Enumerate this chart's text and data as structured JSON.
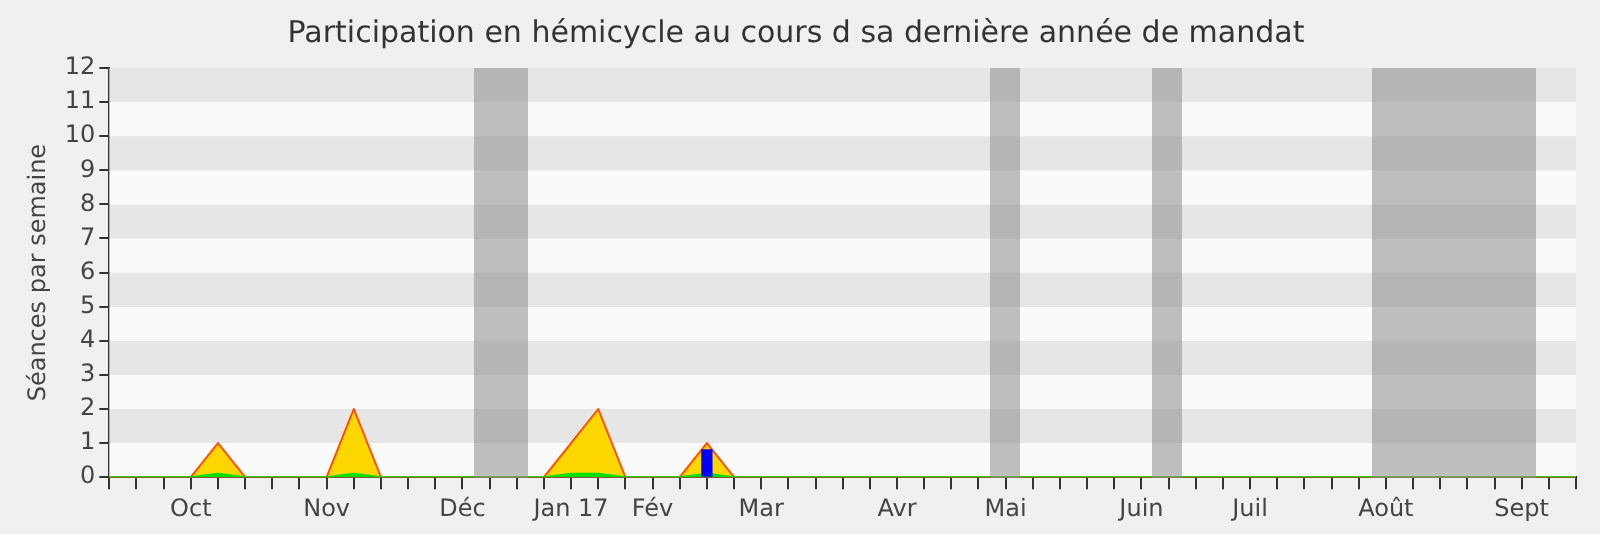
{
  "chart_data": {
    "type": "area",
    "title": "Participation en hémicycle au cours d sa dernière année de mandat",
    "ylabel": "Séances par semaine",
    "categories": [
      null,
      null,
      null,
      "Oct",
      null,
      null,
      null,
      null,
      "Nov",
      null,
      null,
      null,
      null,
      "Déc",
      null,
      null,
      null,
      "Jan 17",
      null,
      null,
      "Fév",
      null,
      null,
      null,
      "Mar",
      null,
      null,
      null,
      null,
      "Avr",
      null,
      null,
      null,
      "Mai",
      null,
      null,
      null,
      null,
      "Juin",
      null,
      null,
      null,
      "Juil",
      null,
      null,
      null,
      null,
      "Août",
      null,
      null,
      null,
      null,
      "Sept",
      null,
      null
    ],
    "ylim": [
      0,
      12
    ],
    "yticks": [
      0,
      1,
      2,
      3,
      4,
      5,
      6,
      7,
      8,
      9,
      10,
      11,
      12
    ],
    "series": [
      {
        "color": "#ffd700",
        "values": [
          0,
          0,
          0,
          0,
          1,
          0,
          0,
          0,
          0,
          2,
          0,
          0,
          0,
          0,
          0,
          0,
          0,
          1,
          2,
          0,
          0,
          0,
          1,
          0,
          0,
          0,
          0,
          0,
          0,
          0,
          0,
          0,
          0,
          0,
          0,
          0,
          0,
          0,
          0,
          0,
          0,
          0,
          0,
          0,
          0,
          0,
          0,
          0,
          0,
          0,
          0,
          0,
          0,
          0,
          0
        ]
      },
      {
        "color": "#00e000",
        "values": [
          0,
          0,
          0,
          0,
          0.1,
          0,
          0,
          0,
          0,
          0.1,
          0,
          0,
          0,
          0,
          0,
          0,
          0,
          0.1,
          0.1,
          0,
          0,
          0,
          0.1,
          0,
          0,
          0,
          0,
          0,
          0,
          0,
          0,
          0,
          0,
          0,
          0,
          0,
          0,
          0,
          0,
          0,
          0,
          0,
          0,
          0,
          0,
          0,
          0,
          0,
          0,
          0,
          0,
          0,
          0,
          0,
          0
        ]
      },
      {
        "type": "bar",
        "color": "#0000ff",
        "values": [
          null,
          null,
          null,
          null,
          null,
          null,
          null,
          null,
          null,
          null,
          null,
          null,
          null,
          null,
          null,
          null,
          null,
          null,
          null,
          null,
          null,
          null,
          0.8,
          null,
          null,
          null,
          null,
          null,
          null,
          null,
          null,
          null,
          null,
          null,
          null,
          null,
          null,
          null,
          null,
          null,
          null,
          null,
          null,
          null,
          null,
          null,
          null,
          null,
          null,
          null,
          null,
          null,
          null,
          null,
          null
        ]
      }
    ]
  }
}
